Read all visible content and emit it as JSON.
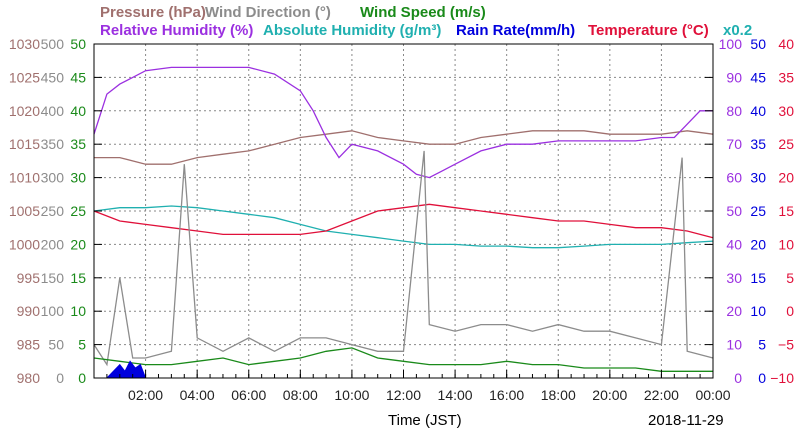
{
  "titles": {
    "pressure": "Pressure (hPa)",
    "wind_direction": "Wind Direction (°)",
    "wind_speed": "Wind Speed (m/s)",
    "relative_humidity": "Relative Humidity (%)",
    "absolute_humidity": "Absolute Humidity (g/m³)",
    "rain_rate": "Rain Rate(mm/h)",
    "temperature": "Temperature (°C)",
    "abs_scale_note": "x0.2"
  },
  "colors": {
    "pressure": "#a0706e",
    "wind_direction": "#8c8c8c",
    "wind_speed": "#1a8a1a",
    "relative_humidity": "#9b30e0",
    "absolute_humidity": "#20b0b0",
    "rain_rate": "#0000dd",
    "temperature": "#e0103a",
    "grid": "#888888"
  },
  "chart_data": {
    "type": "line",
    "xlabel": "Time (JST)",
    "date": "2018-11-29",
    "x_ticks": [
      "02:00",
      "04:00",
      "06:00",
      "08:00",
      "10:00",
      "12:00",
      "14:00",
      "16:00",
      "18:00",
      "20:00",
      "22:00",
      "00:00"
    ],
    "xlim_hours": [
      0,
      24
    ],
    "axes": {
      "pressure": {
        "ticks": [
          "1030",
          "1025",
          "1020",
          "1015",
          "1010",
          "1005",
          "1000",
          "995",
          "990",
          "985",
          "980"
        ],
        "range": [
          980,
          1030
        ]
      },
      "wind_direction": {
        "ticks": [
          "500",
          "450",
          "400",
          "350",
          "300",
          "250",
          "200",
          "150",
          "100",
          "50",
          "0"
        ],
        "range": [
          0,
          500
        ]
      },
      "wind_speed": {
        "ticks": [
          "50",
          "45",
          "40",
          "35",
          "30",
          "25",
          "20",
          "15",
          "10",
          "5",
          "0"
        ],
        "range": [
          0,
          50
        ]
      },
      "relative_humidity": {
        "ticks": [
          "100",
          "90",
          "80",
          "70",
          "60",
          "50",
          "40",
          "30",
          "20",
          "10",
          "0"
        ],
        "range": [
          0,
          100
        ]
      },
      "rain_rate": {
        "ticks": [
          "50",
          "45",
          "40",
          "35",
          "30",
          "25",
          "20",
          "15",
          "10",
          "5",
          "0"
        ],
        "range": [
          0,
          50
        ]
      },
      "temperature": {
        "ticks": [
          "40",
          "35",
          "30",
          "25",
          "20",
          "15",
          "10",
          "5",
          "0",
          "−5",
          "−10"
        ],
        "range": [
          -10,
          40
        ]
      }
    },
    "series": [
      {
        "name": "Pressure (hPa)",
        "axis": "pressure",
        "x": [
          0,
          1,
          2,
          3,
          4,
          5,
          6,
          7,
          8,
          9,
          10,
          11,
          12,
          13,
          14,
          15,
          16,
          17,
          18,
          19,
          20,
          21,
          22,
          23,
          24
        ],
        "y": [
          1013,
          1013,
          1012,
          1012,
          1013,
          1013.5,
          1014,
          1015,
          1016,
          1016.5,
          1017,
          1016,
          1015.5,
          1015,
          1015,
          1016,
          1016.5,
          1017,
          1017,
          1017,
          1016.5,
          1016.5,
          1016.5,
          1017,
          1016.5
        ]
      },
      {
        "name": "Relative Humidity (%)",
        "axis": "relative_humidity",
        "x": [
          0,
          0.5,
          1,
          1.5,
          2,
          3,
          4,
          5,
          6,
          7,
          8,
          8.5,
          9,
          9.5,
          10,
          11,
          12,
          12.5,
          13,
          13.5,
          14,
          15,
          16,
          17,
          18,
          19,
          20,
          21,
          22,
          22.5,
          23,
          23.5,
          24
        ],
        "y": [
          73,
          85,
          88,
          90,
          92,
          93,
          93,
          93,
          93,
          91,
          86,
          80,
          72,
          66,
          70,
          68,
          64,
          61,
          60,
          62,
          64,
          68,
          70,
          70,
          71,
          71,
          71,
          71,
          72,
          72,
          76,
          80,
          80
        ]
      },
      {
        "name": "Absolute Humidity (g/m³)",
        "axis": "relative_humidity",
        "x": [
          0,
          1,
          2,
          3,
          4,
          5,
          6,
          7,
          8,
          9,
          10,
          11,
          12,
          13,
          14,
          15,
          16,
          17,
          18,
          19,
          20,
          21,
          22,
          23,
          24
        ],
        "y": [
          50,
          51,
          51,
          51.5,
          51,
          50,
          49,
          48,
          46,
          44,
          43,
          42,
          41,
          40,
          40,
          39.5,
          39.5,
          39,
          39,
          39.5,
          40,
          40,
          40,
          40.5,
          41
        ]
      },
      {
        "name": "Temperature (°C)",
        "axis": "temperature",
        "x": [
          0,
          1,
          2,
          3,
          4,
          5,
          6,
          7,
          8,
          9,
          10,
          11,
          12,
          13,
          14,
          15,
          16,
          17,
          18,
          19,
          20,
          21,
          22,
          23,
          24
        ],
        "y": [
          15,
          13.5,
          13,
          12.5,
          12,
          11.5,
          11.5,
          11.5,
          11.5,
          12,
          13.5,
          15,
          15.5,
          16,
          15.5,
          15,
          14.5,
          14,
          13.5,
          13.5,
          13,
          12.5,
          12.5,
          12,
          11
        ]
      },
      {
        "name": "Wind Direction (°)",
        "axis": "wind_direction",
        "x": [
          0,
          0.5,
          1,
          1.5,
          2,
          3,
          3.5,
          4,
          5,
          6,
          7,
          8,
          9,
          10,
          11,
          12,
          12.8,
          13,
          14,
          15,
          16,
          17,
          18,
          19,
          20,
          21,
          22,
          22.8,
          23,
          24
        ],
        "y": [
          50,
          20,
          150,
          30,
          30,
          40,
          320,
          60,
          40,
          60,
          40,
          60,
          60,
          50,
          40,
          40,
          340,
          80,
          70,
          80,
          80,
          70,
          80,
          70,
          70,
          60,
          50,
          330,
          40,
          30
        ]
      },
      {
        "name": "Wind Speed (m/s)",
        "axis": "wind_speed",
        "x": [
          0,
          1,
          2,
          3,
          4,
          5,
          6,
          7,
          8,
          9,
          10,
          11,
          12,
          13,
          14,
          15,
          16,
          17,
          18,
          19,
          20,
          21,
          22,
          23,
          24
        ],
        "y": [
          3,
          2.5,
          2,
          2,
          2.5,
          3,
          2,
          2.5,
          3,
          4,
          4.5,
          3,
          2.5,
          2,
          2,
          2,
          2.5,
          2,
          2,
          1.5,
          1.5,
          1.5,
          1,
          1,
          1
        ]
      },
      {
        "name": "Rain Rate(mm/h)",
        "axis": "rain_rate",
        "x": [
          0,
          0.5,
          1,
          1.2,
          1.4,
          1.6,
          1.8,
          2,
          2.5,
          24
        ],
        "y": [
          0,
          0,
          2,
          1,
          2.5,
          1.5,
          2,
          0,
          0,
          0
        ]
      }
    ]
  }
}
